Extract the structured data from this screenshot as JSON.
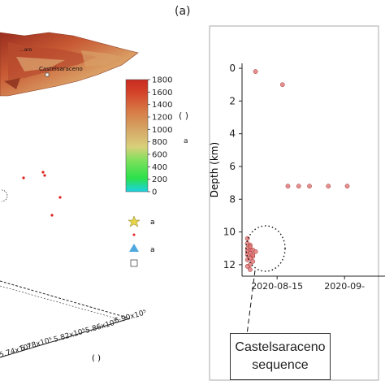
{
  "panel_label": "(a)",
  "map3d": {
    "town_labels": [
      "Castelsaraceno",
      "...aro"
    ],
    "x_tick_labels": [
      "5.74x10⁵",
      "5.78x10⁵",
      "5.82x10⁵",
      "5.86x10⁵",
      "5.90x10⁵"
    ],
    "x_axis_unit": "( )",
    "colorbar": {
      "ticks": [
        "1800",
        "1600",
        "1400",
        "1200",
        "1000",
        "800",
        "600",
        "400",
        "200",
        "0"
      ],
      "unit": "( )",
      "label": "a"
    },
    "legend": [
      {
        "icon": "star",
        "color": "#e6d44a",
        "label": "a"
      },
      {
        "icon": "dot",
        "color": "#e0201b",
        "label": ""
      },
      {
        "icon": "triangle",
        "color": "#4fa8e0",
        "label": "a"
      },
      {
        "icon": "square",
        "color": "#ffffff",
        "label": ""
      }
    ]
  },
  "chart_data": {
    "type": "scatter",
    "title": "",
    "xlabel": "",
    "ylabel": "Depth (km)",
    "x_tick_labels": [
      "2020-08-15",
      "2020-09-"
    ],
    "y_ticks": [
      0,
      2,
      4,
      6,
      8,
      10,
      12
    ],
    "ylim": [
      12.7,
      -0.3
    ],
    "y_inverted": true,
    "xlim": [
      "2020-08-02",
      "2020-09-24"
    ],
    "grid": false,
    "series": [
      {
        "color": "#e07575",
        "points": [
          {
            "x": "2020-08-07",
            "y": 0.2
          },
          {
            "x": "2020-08-17",
            "y": 1.0
          },
          {
            "x": "2020-08-19",
            "y": 7.2
          },
          {
            "x": "2020-08-23",
            "y": 7.2
          },
          {
            "x": "2020-08-27",
            "y": 7.2
          },
          {
            "x": "2020-09-03",
            "y": 7.2
          },
          {
            "x": "2020-09-10",
            "y": 7.2
          },
          {
            "x": "2020-08-04",
            "y": 10.4
          },
          {
            "x": "2020-08-04",
            "y": 10.7
          },
          {
            "x": "2020-08-05",
            "y": 10.8
          },
          {
            "x": "2020-08-04",
            "y": 11.0
          },
          {
            "x": "2020-08-05",
            "y": 11.1
          },
          {
            "x": "2020-08-04",
            "y": 11.2
          },
          {
            "x": "2020-08-05",
            "y": 11.3
          },
          {
            "x": "2020-08-04",
            "y": 11.4
          },
          {
            "x": "2020-08-06",
            "y": 11.5
          },
          {
            "x": "2020-08-05",
            "y": 11.6
          },
          {
            "x": "2020-08-04",
            "y": 11.7
          },
          {
            "x": "2020-08-06",
            "y": 11.8
          },
          {
            "x": "2020-08-05",
            "y": 12.0
          },
          {
            "x": "2020-08-04",
            "y": 12.1
          },
          {
            "x": "2020-08-06",
            "y": 11.1
          },
          {
            "x": "2020-08-05",
            "y": 10.9
          },
          {
            "x": "2020-08-06",
            "y": 11.4
          },
          {
            "x": "2020-08-07",
            "y": 11.2
          },
          {
            "x": "2020-08-05",
            "y": 12.3
          }
        ]
      }
    ],
    "annotation": {
      "text": [
        "Castelsaraceno",
        "sequence"
      ]
    }
  }
}
